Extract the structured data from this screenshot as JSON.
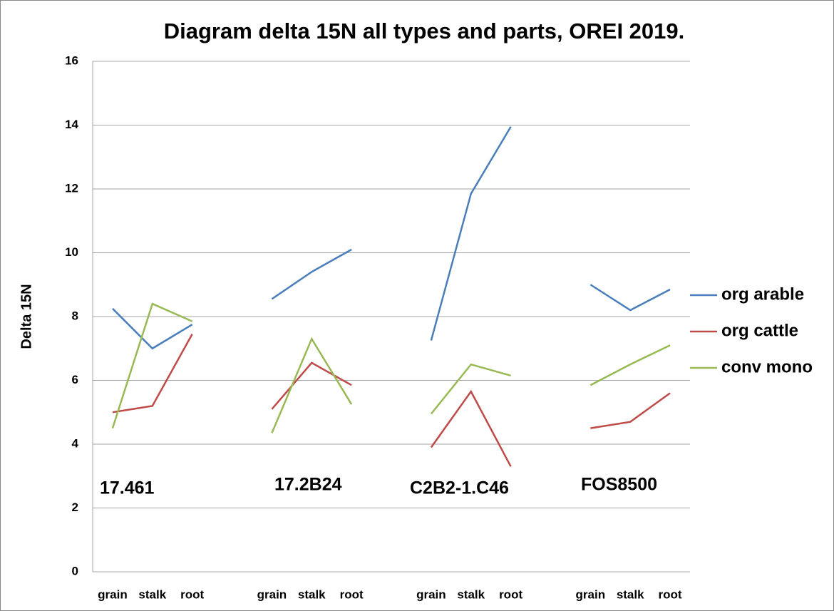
{
  "chart_data": {
    "type": "line",
    "title": "Diagram delta 15N all types and parts, OREI 2019.",
    "y_label": "Delta 15N",
    "categories": [
      "grain",
      "stalk",
      "root",
      null,
      "grain",
      "stalk",
      "root",
      null,
      "grain",
      "stalk",
      "root",
      null,
      "grain",
      "stalk",
      "root"
    ],
    "annotations": [
      "17.461",
      "17.2B24",
      "C2B2-1.C46",
      "FOS8500"
    ],
    "series": [
      {
        "name": "org arable",
        "color": "#4a7ebb",
        "values": [
          8.25,
          7.0,
          7.75,
          null,
          8.55,
          9.4,
          10.1,
          null,
          7.25,
          11.85,
          13.95,
          null,
          9.0,
          8.2,
          8.85
        ]
      },
      {
        "name": "org cattle",
        "color": "#be4b48",
        "values": [
          5.0,
          5.2,
          7.45,
          null,
          5.1,
          6.55,
          5.85,
          null,
          3.9,
          5.65,
          3.3,
          null,
          4.5,
          4.7,
          5.6
        ]
      },
      {
        "name": "conv mono",
        "color": "#98b954",
        "values": [
          4.5,
          8.4,
          7.85,
          null,
          4.35,
          7.3,
          5.25,
          null,
          4.95,
          6.5,
          6.15,
          null,
          5.85,
          6.5,
          7.1
        ]
      }
    ],
    "ylim": [
      0,
      16
    ],
    "yticks": [
      0,
      2,
      4,
      6,
      8,
      10,
      12,
      14,
      16
    ],
    "grid": true,
    "legend": "right"
  }
}
